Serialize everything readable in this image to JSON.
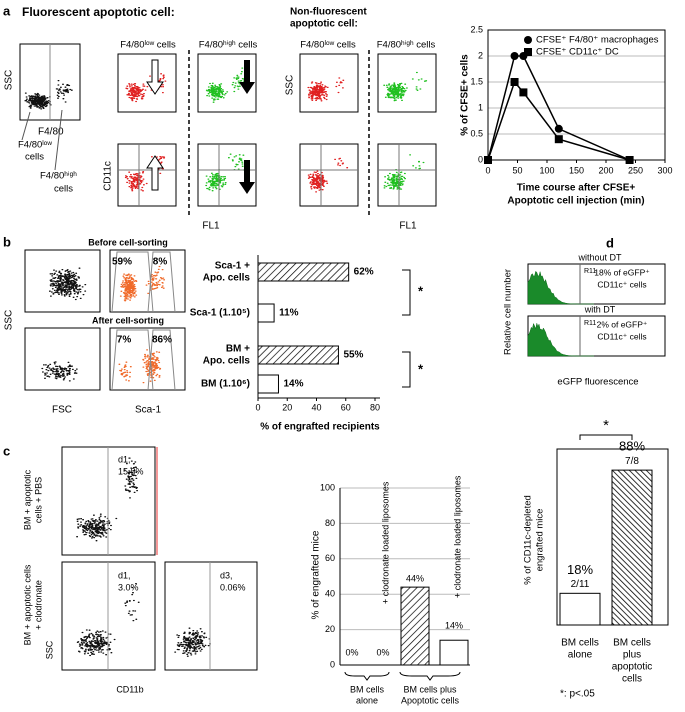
{
  "panels": {
    "a": {
      "label": "a",
      "heading": "Fluorescent apoptotic cell:",
      "heading2": [
        "Non-fluorescent",
        "apoptotic cell:"
      ],
      "columns": [
        "F4/80ˡᵒʷ cells",
        "F4/80ʰⁱᵍʰ cells",
        "F4/80ˡᵒʷ cells",
        "F4/80ʰⁱᵍʰ cells"
      ],
      "ssc": "SSC",
      "f480": "F4/80",
      "gate_low": [
        "F4/80ˡᵒʷ",
        "cells"
      ],
      "gate_high": [
        "F4/80ʰⁱᵍʰ",
        "cells"
      ],
      "ssc2": "SSC",
      "cd11c": "CD11c",
      "fl1": [
        "FL1",
        "FL1"
      ]
    },
    "b": {
      "label": "b",
      "before": "Before cell-sorting",
      "after": "After cell-sorting",
      "ssc": "SSC",
      "fsc": "FSC",
      "sca1": "Sca-1",
      "gates": [
        "59%",
        "8%",
        "7%",
        "86%"
      ]
    },
    "c": {
      "label": "c",
      "rows": [
        [
          "BM + apoptotic",
          "cells + PBS"
        ],
        [
          "BM + apoptotic cells",
          "+ clodronate"
        ]
      ],
      "ssc": "SSC",
      "cd11b": "CD11b",
      "gates": [
        [
          "d1,",
          "15.0%"
        ],
        [
          "d1,",
          "3.0%"
        ],
        [
          "d3,",
          "0.06%"
        ]
      ]
    },
    "d": {
      "label": "d",
      "hist": [
        {
          "title": "without DT",
          "gate": "R11",
          "note": [
            "18% of eGFP⁺",
            "CD11c⁺ cells"
          ]
        },
        {
          "title": "with DT",
          "gate": "R11",
          "note": [
            "2% of eGFP⁺",
            "CD11c⁺ cells"
          ]
        }
      ],
      "ylabel": "Relative cell number",
      "xlabel": "eGFP fluorescence"
    }
  },
  "chart_data": [
    {
      "type": "line",
      "ylabel": "% of CFSE+ cells",
      "xlabel": [
        "Time course after CFSE+",
        "Apoptotic cell injection (min)"
      ],
      "xlim": [
        0,
        300
      ],
      "xticks": [
        0,
        50,
        100,
        150,
        200,
        250,
        300
      ],
      "ylim": [
        0,
        2.5
      ],
      "yticks": [
        0,
        0.5,
        1,
        1.5,
        2,
        2.5
      ],
      "grid": true,
      "series": [
        {
          "name": "CFSE⁺ F4/80⁺ macrophages",
          "marker": "circle",
          "color": "#000000",
          "x": [
            0,
            45,
            60,
            120,
            240
          ],
          "values": [
            0,
            2,
            2,
            0.6,
            0
          ]
        },
        {
          "name": "CFSE⁺ CD11c⁺ DC",
          "marker": "square",
          "color": "#000000",
          "x": [
            0,
            45,
            60,
            120,
            240
          ],
          "values": [
            0,
            1.5,
            1.3,
            0.4,
            0
          ]
        }
      ]
    },
    {
      "type": "hbar",
      "categories": [
        [
          "Sca-1 +",
          "Apo. cells"
        ],
        [
          "Sca-1 (1.10⁵)"
        ],
        [
          "BM +",
          "Apo. cells"
        ],
        [
          "BM (1.10⁶)"
        ]
      ],
      "values": [
        62,
        11,
        55,
        14
      ],
      "value_labels": [
        "62%",
        "11%",
        "55%",
        "14%"
      ],
      "patterns": [
        "hatch",
        "open",
        "hatch",
        "open"
      ],
      "xlim": [
        0,
        80
      ],
      "xticks": [
        0,
        20,
        40,
        60,
        80
      ],
      "xlabel": "% of engrafted recipients",
      "annotations": [
        "*",
        "*"
      ]
    },
    {
      "type": "bar",
      "ylabel": "% of engrafted mice",
      "values": [
        0,
        0,
        44,
        14
      ],
      "value_labels": [
        "0%",
        "0%",
        "44%",
        "14%"
      ],
      "patterns": [
        "open",
        "open",
        "hatch",
        "open"
      ],
      "bar_notes": [
        "+ clodronate loaded liposomes",
        "+ clodronate loaded liposomes"
      ],
      "groups": [
        [
          "BM cells",
          "alone"
        ],
        [
          "BM cells plus",
          "Apoptotic cells"
        ]
      ],
      "ylim": [
        0,
        100
      ],
      "yticks": [
        0,
        20,
        40,
        60,
        80,
        100
      ],
      "grid": true
    },
    {
      "type": "bar",
      "ylabel": [
        "% of CD11c-depleted",
        "engrafted mice"
      ],
      "values": [
        18,
        88
      ],
      "value_labels": [
        "18%",
        "88%"
      ],
      "fractions": [
        "2/11",
        "7/8"
      ],
      "patterns": [
        "open",
        "hatch"
      ],
      "categories": [
        [
          "BM cells",
          "alone"
        ],
        [
          "BM cells",
          "plus",
          "apoptotic",
          "cells"
        ]
      ],
      "ylim": [
        0,
        100
      ],
      "annotation": "*",
      "footnote": "*: p<.05"
    }
  ]
}
